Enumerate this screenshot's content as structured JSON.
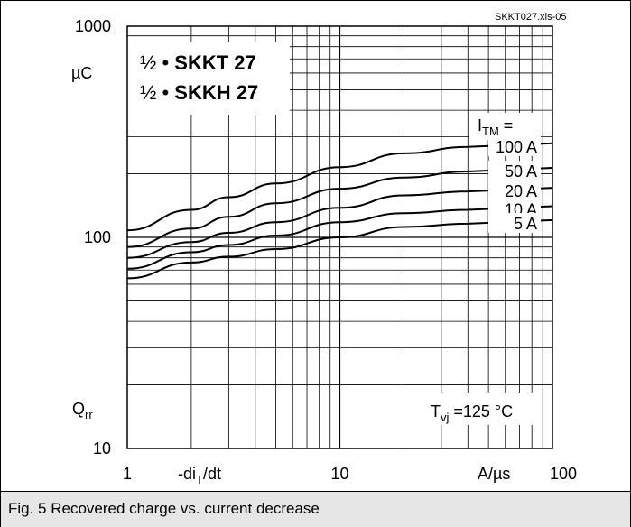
{
  "file_tag": "SKKT027.xls-05",
  "caption": "Fig. 5 Recovered charge vs. current decrease",
  "legend_lines": [
    {
      "prefix": "½ • ",
      "name": "SKKT 27"
    },
    {
      "prefix": "½ • ",
      "name": "SKKH 27"
    }
  ],
  "itm_label": {
    "main": "I",
    "sub": "TM",
    "suffix": " ="
  },
  "condition": {
    "main": "T",
    "sub": "vj",
    "rest": " =125 °C"
  },
  "chart_data": {
    "type": "line",
    "x_scale": "log",
    "y_scale": "log",
    "xlim": [
      1,
      100
    ],
    "ylim": [
      10,
      1000
    ],
    "grid": true,
    "x_ticks": [
      {
        "value": 1,
        "label": "1"
      },
      {
        "value": 10,
        "label": "10"
      },
      {
        "value": 100,
        "label": "100"
      }
    ],
    "y_ticks": [
      {
        "value": 10,
        "label": "10"
      },
      {
        "value": 100,
        "label": "100"
      },
      {
        "value": 1000,
        "label": "1000"
      }
    ],
    "xlabel": {
      "main": "-di",
      "sub": "T",
      "tail": "/dt"
    },
    "x_unit": "A/µs",
    "ylabel": {
      "main": "Q",
      "sub": "rr"
    },
    "y_unit": "µC",
    "series": [
      {
        "name": "100 A",
        "x": [
          1,
          2,
          3,
          5,
          10,
          20,
          40
        ],
        "y": [
          108,
          135,
          155,
          180,
          215,
          250,
          268
        ]
      },
      {
        "name": "50 A",
        "x": [
          1,
          2,
          3,
          5,
          10,
          20,
          40
        ],
        "y": [
          90,
          110,
          125,
          145,
          170,
          192,
          205
        ]
      },
      {
        "name": "20 A",
        "x": [
          1,
          2,
          3,
          5,
          10,
          20,
          40
        ],
        "y": [
          80,
          95,
          105,
          118,
          138,
          158,
          165
        ]
      },
      {
        "name": "10 A",
        "x": [
          1,
          2,
          3,
          5,
          10,
          20,
          40
        ],
        "y": [
          71,
          85,
          92,
          102,
          118,
          130,
          135
        ]
      },
      {
        "name": "5 A",
        "x": [
          1,
          2,
          3,
          5,
          10,
          20,
          40
        ],
        "y": [
          64,
          76,
          81,
          88,
          100,
          112,
          116
        ]
      }
    ]
  }
}
